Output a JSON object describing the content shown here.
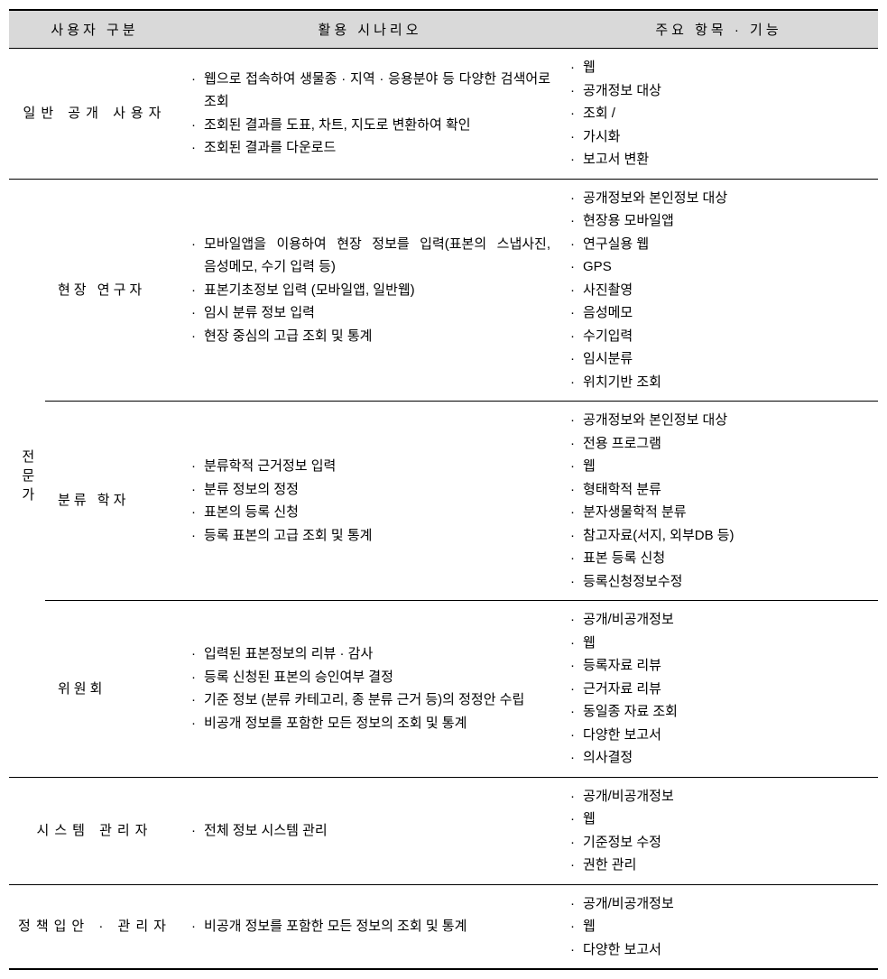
{
  "columns": {
    "user_category": "사용자 구분",
    "scenario": "활용 시나리오",
    "features": "주요 항목 · 기능"
  },
  "rows": {
    "public_user": {
      "label": "일반 공개 사용자",
      "scenario": [
        "웹으로 접속하여 생물종 · 지역 · 응용분야 등 다양한 검색어로 조회",
        "조회된 결과를 도표, 차트, 지도로 변환하여 확인",
        "조회된 결과를 다운로드"
      ],
      "features": [
        "웹",
        "공개정보 대상",
        "조회 /",
        "가시화",
        "보고서 변환"
      ]
    },
    "expert_group": {
      "label": "전문가",
      "field_researcher": {
        "label": "현장 연구자",
        "scenario": [
          "모바일앱을 이용하여 현장 정보를 입력(표본의 스냅사진, 음성메모, 수기 입력 등)",
          "표본기초정보 입력 (모바일앱, 일반웹)",
          "임시 분류 정보 입력",
          "현장 중심의 고급 조회 및 통계"
        ],
        "features": [
          "공개정보와 본인정보 대상",
          "현장용 모바일앱",
          "연구실용 웹",
          "GPS",
          "사진촬영",
          "음성메모",
          "수기입력",
          "임시분류",
          "위치기반 조회"
        ]
      },
      "taxonomist": {
        "label": "분류 학자",
        "scenario": [
          "분류학적 근거정보 입력",
          "분류 정보의 정정",
          "표본의 등록 신청",
          "등록 표본의 고급 조회 및 통계"
        ],
        "features": [
          "공개정보와 본인정보 대상",
          "전용 프로그램",
          "웹",
          "형태학적 분류",
          "분자생물학적 분류",
          "참고자료(서지, 외부DB 등)",
          "표본 등록 신청",
          "등록신청정보수정"
        ]
      },
      "committee": {
        "label": "위원회",
        "scenario": [
          "입력된 표본정보의 리뷰 · 감사",
          "등록 신청된 표본의 승인여부 결정",
          "기준 정보 (분류 카테고리, 종 분류 근거 등)의 정정안 수립",
          "비공개 정보를 포함한 모든 정보의 조회 및 통계"
        ],
        "features": [
          "공개/비공개정보",
          "웹",
          "등록자료 리뷰",
          "근거자료 리뷰",
          "동일종 자료 조회",
          "다양한 보고서",
          "의사결정"
        ]
      }
    },
    "sysadmin": {
      "label": "시스템 관리자",
      "scenario": [
        "전체 정보 시스템 관리"
      ],
      "features": [
        "공개/비공개정보",
        "웹",
        "기준정보 수정",
        "권한 관리"
      ]
    },
    "policy_maker": {
      "label": "정책입안 · 관리자",
      "scenario": [
        "비공개 정보를 포함한 모든 정보의 조회 및 통계"
      ],
      "features": [
        "공개/비공개정보",
        "웹",
        "다양한 보고서"
      ]
    }
  }
}
